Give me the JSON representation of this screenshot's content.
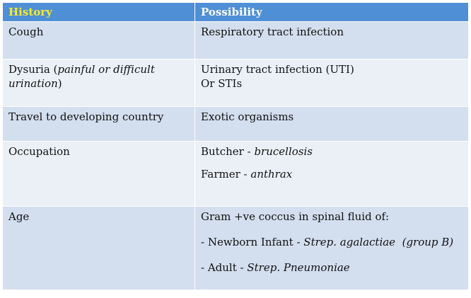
{
  "header": {
    "history": "History",
    "possibility": "Possibility"
  },
  "rows": {
    "cough": {
      "history": "Cough",
      "possibility": "Respiratory tract infection"
    },
    "dysuria": {
      "history_main": "Dysuria (",
      "history_italic": "painful or difficult urination",
      "history_close": ")",
      "possibility_line1": "Urinary tract infection (UTI)",
      "possibility_line2": "Or STIs"
    },
    "travel": {
      "history": "Travel to developing country",
      "possibility": "Exotic organisms"
    },
    "occupation": {
      "history": "Occupation",
      "line1_prefix": "Butcher - ",
      "line1_italic": "brucellosis",
      "line2_prefix": "Farmer - ",
      "line2_italic": "anthrax"
    },
    "age": {
      "history": "Age",
      "intro": "Gram +ve coccus in spinal fluid of:",
      "line1_prefix": "- Newborn Infant - ",
      "line1_italic": "Strep. agalactiae  (group B)",
      "line2_prefix": "- Adult - ",
      "line2_italic": "Strep. Pneumoniae"
    }
  }
}
